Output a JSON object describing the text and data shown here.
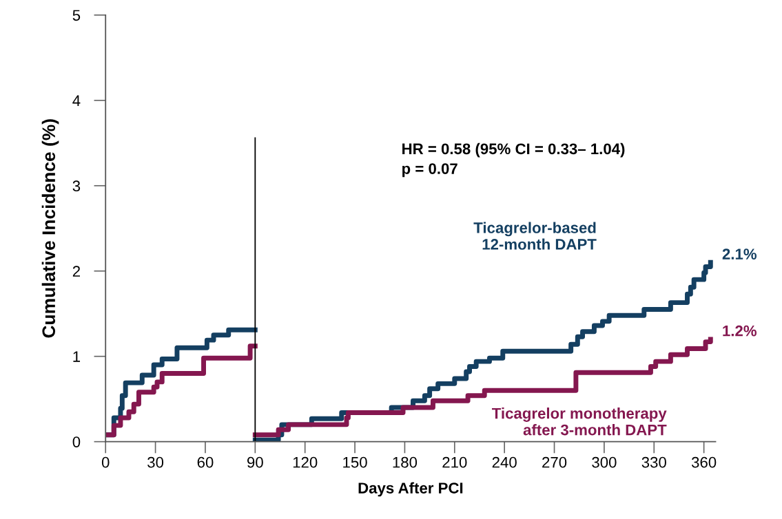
{
  "chart_data": {
    "type": "step",
    "xlabel": "Days After PCI",
    "ylabel": "Cumulative Incidence (%)",
    "xlim": [
      0,
      367
    ],
    "xticks": [
      0,
      30,
      60,
      90,
      120,
      150,
      180,
      210,
      240,
      270,
      300,
      330,
      360
    ],
    "ylim": [
      0,
      5
    ],
    "yticks": [
      0,
      1,
      2,
      3,
      4,
      5
    ],
    "grid": false,
    "legend": false,
    "marker": "none",
    "line_style": "solid",
    "ref_lines": [
      {
        "axis": "x",
        "value": 90,
        "color": "#000000"
      }
    ],
    "series": [
      {
        "name": "Ticagrelor-based\n12-month DAPT",
        "color": "#143f61",
        "x": [
          0,
          1,
          5,
          9,
          10,
          12,
          22,
          29,
          34,
          43,
          61,
          65,
          74,
          90
        ],
        "values": [
          0.08,
          0.08,
          0.28,
          0.39,
          0.54,
          0.69,
          0.78,
          0.9,
          0.97,
          1.1,
          1.19,
          1.25,
          1.31,
          1.31
        ]
      },
      {
        "name": "Ticagrelor monotherapy\nafter 3-month DAPT",
        "color": "#84174f",
        "x": [
          0,
          5,
          9,
          14,
          17,
          20,
          29,
          31,
          34,
          59,
          87,
          90
        ],
        "values": [
          0.08,
          0.19,
          0.28,
          0.35,
          0.44,
          0.58,
          0.64,
          0.7,
          0.8,
          0.98,
          1.12,
          1.12
        ]
      },
      {
        "color": "#143f61",
        "x": [
          90,
          104,
          106,
          124,
          142,
          172,
          185,
          192,
          195,
          200,
          210,
          217,
          219,
          223,
          231,
          239,
          280,
          284,
          287,
          294,
          299,
          303,
          324,
          340,
          350,
          352,
          354,
          360,
          361,
          364
        ],
        "values": [
          0.02,
          0.08,
          0.2,
          0.27,
          0.34,
          0.4,
          0.48,
          0.54,
          0.62,
          0.68,
          0.74,
          0.82,
          0.88,
          0.94,
          0.98,
          1.06,
          1.14,
          1.23,
          1.29,
          1.36,
          1.41,
          1.48,
          1.55,
          1.63,
          1.73,
          1.81,
          1.9,
          1.98,
          2.05,
          2.1
        ]
      },
      {
        "color": "#84174f",
        "x": [
          90,
          104,
          110,
          145,
          146,
          179,
          197,
          218,
          228,
          283,
          328,
          331,
          340,
          350,
          361,
          364
        ],
        "values": [
          0.08,
          0.14,
          0.2,
          0.28,
          0.34,
          0.4,
          0.48,
          0.54,
          0.6,
          0.81,
          0.88,
          0.94,
          1.02,
          1.09,
          1.17,
          1.2
        ]
      }
    ],
    "annotations": [
      "HR = 0.58 (95% CI = 0.33– 1.04)\np = 0.07",
      {
        "text": "2.1%",
        "x": 364,
        "y": 2.1
      },
      {
        "text": "1.2%",
        "x": 364,
        "y": 1.2
      }
    ]
  }
}
